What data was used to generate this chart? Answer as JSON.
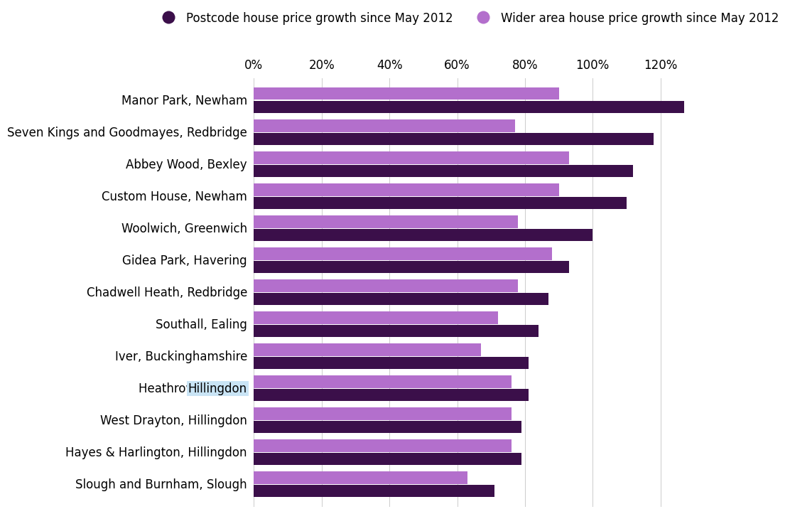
{
  "categories": [
    "Manor Park, Newham",
    "Seven Kings and Goodmayes, Redbridge",
    "Abbey Wood, Bexley",
    "Custom House, Newham",
    "Woolwich, Greenwich",
    "Gidea Park, Havering",
    "Chadwell Heath, Redbridge",
    "Southall, Ealing",
    "Iver, Buckinghamshire",
    "Heathrow Airport, Hillingdon",
    "West Drayton, Hillingdon",
    "Hayes & Harlington, Hillingdon",
    "Slough and Burnham, Slough"
  ],
  "postcode_growth": [
    127,
    118,
    112,
    110,
    100,
    93,
    87,
    84,
    81,
    81,
    79,
    79,
    71
  ],
  "wider_growth": [
    90,
    77,
    93,
    90,
    78,
    88,
    78,
    72,
    67,
    76,
    76,
    76,
    63
  ],
  "postcode_color": "#3b0f4a",
  "wider_color": "#b36fcc",
  "highlight_label": "Hillingdon",
  "highlight_color": "#c9e4f5",
  "legend_postcode": "Postcode house price growth since May 2012",
  "legend_wider": "Wider area house price growth since May 2012",
  "xlim": [
    0,
    130
  ],
  "xtick_values": [
    0,
    20,
    40,
    60,
    80,
    100,
    120
  ],
  "background_color": "#ffffff",
  "bar_height": 0.38,
  "bar_gap": 0.04
}
